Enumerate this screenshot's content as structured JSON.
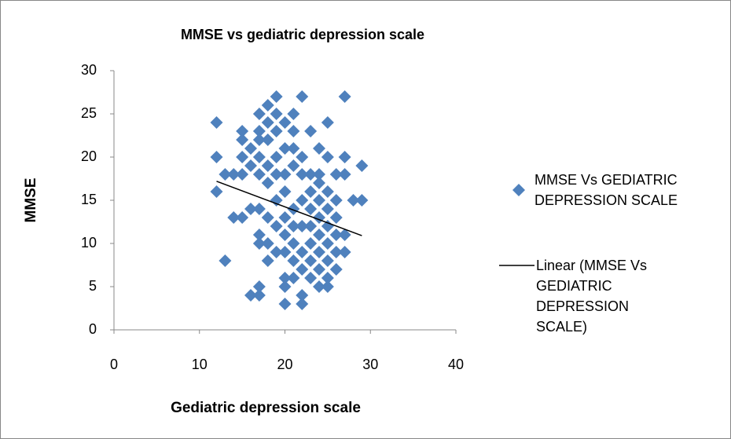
{
  "chart_data": {
    "type": "scatter",
    "title": "MMSE vs gediatric depression scale",
    "x_label": "Gediatric depression scale",
    "y_label": "MMSE",
    "xlim": [
      0,
      40
    ],
    "xticks": [
      0,
      10,
      20,
      30,
      40
    ],
    "ylim": [
      0,
      30
    ],
    "yticks": [
      0,
      5,
      10,
      15,
      20,
      25,
      30
    ],
    "series": [
      {
        "name": "MMSE Vs GEDIATRIC DEPRESSION SCALE",
        "color": "#4f81bd",
        "x": [
          12,
          12,
          12,
          13,
          13,
          14,
          14,
          15,
          15,
          15,
          15,
          15,
          16,
          16,
          16,
          16,
          17,
          17,
          17,
          17,
          17,
          17,
          17,
          17,
          17,
          17,
          18,
          18,
          18,
          18,
          18,
          18,
          18,
          18,
          19,
          19,
          19,
          19,
          19,
          19,
          19,
          19,
          20,
          20,
          20,
          20,
          20,
          20,
          20,
          20,
          20,
          20,
          21,
          21,
          21,
          21,
          21,
          21,
          21,
          21,
          21,
          22,
          22,
          22,
          22,
          22,
          22,
          22,
          22,
          22,
          23,
          23,
          23,
          23,
          23,
          23,
          23,
          23,
          24,
          24,
          24,
          24,
          24,
          24,
          24,
          24,
          24,
          25,
          25,
          25,
          25,
          25,
          25,
          25,
          25,
          25,
          26,
          26,
          26,
          26,
          26,
          26,
          27,
          27,
          27,
          27,
          27,
          28,
          29,
          29
        ],
        "values": [
          24,
          20,
          16,
          18,
          8,
          18,
          13,
          23,
          22,
          20,
          18,
          13,
          21,
          19,
          14,
          4,
          25,
          23,
          22,
          20,
          18,
          14,
          11,
          10,
          5,
          4,
          26,
          24,
          22,
          19,
          17,
          13,
          10,
          8,
          27,
          25,
          23,
          20,
          18,
          15,
          12,
          9,
          24,
          21,
          18,
          16,
          13,
          11,
          9,
          6,
          5,
          3,
          25,
          23,
          21,
          19,
          14,
          12,
          10,
          8,
          6,
          27,
          20,
          18,
          15,
          12,
          9,
          7,
          4,
          3,
          23,
          18,
          16,
          14,
          12,
          10,
          8,
          6,
          21,
          18,
          17,
          15,
          13,
          11,
          9,
          7,
          5,
          24,
          20,
          16,
          14,
          12,
          10,
          8,
          6,
          5,
          18,
          15,
          13,
          11,
          9,
          7,
          27,
          20,
          18,
          11,
          9,
          15,
          19,
          15
        ]
      }
    ],
    "trendline": {
      "name": "Linear (MMSE Vs GEDIATRIC DEPRESSION SCALE)",
      "color": "#000000",
      "x": [
        12,
        29
      ],
      "values": [
        17.2,
        10.9
      ]
    }
  }
}
